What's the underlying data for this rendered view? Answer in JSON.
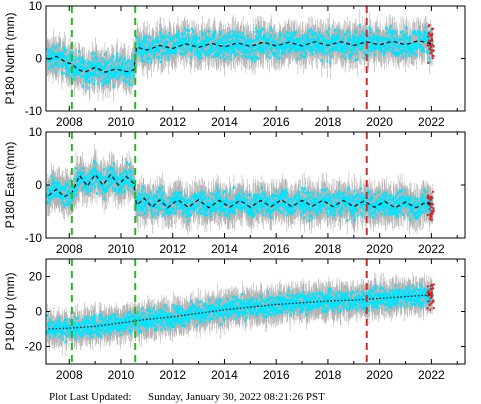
{
  "footer": {
    "label": "Plot Last Updated:",
    "timestamp": "Sunday, January 30, 2022 08:21:26 PST"
  },
  "colors": {
    "error_bars": "#b4b4b4",
    "points": "#00e5ff",
    "recent_points": "#e0201e",
    "model_line": "#000000",
    "equipment_change": "#2bb52b",
    "earthquake": "#d62728"
  },
  "chart_data": [
    {
      "type": "scatter",
      "ylabel": "P180 North (mm)",
      "xlim": [
        2007.1,
        2023.3
      ],
      "ylim": [
        -10,
        10
      ],
      "yticks": [
        -10,
        0,
        10
      ],
      "xticks": [
        2008,
        2010,
        2012,
        2014,
        2016,
        2018,
        2020,
        2022
      ],
      "vlines": [
        {
          "x": 2008.1,
          "color": "green"
        },
        {
          "x": 2010.55,
          "color": "green"
        },
        {
          "x": 2019.5,
          "color": "red"
        }
      ],
      "model": [
        [
          2007.2,
          -0.2
        ],
        [
          2007.5,
          0.4
        ],
        [
          2007.9,
          -0.8
        ],
        [
          2008.1,
          -1.0
        ],
        [
          2008.3,
          -2.0
        ],
        [
          2008.6,
          -2.6
        ],
        [
          2009.0,
          -1.7
        ],
        [
          2009.4,
          -2.6
        ],
        [
          2009.8,
          -2.0
        ],
        [
          2010.2,
          -2.5
        ],
        [
          2010.5,
          -2.2
        ],
        [
          2010.6,
          2.2
        ],
        [
          2011.0,
          1.6
        ],
        [
          2011.5,
          2.5
        ],
        [
          2012.0,
          1.9
        ],
        [
          2012.5,
          2.8
        ],
        [
          2013.0,
          2.1
        ],
        [
          2013.5,
          2.9
        ],
        [
          2014.0,
          2.2
        ],
        [
          2014.5,
          3.0
        ],
        [
          2015.0,
          2.3
        ],
        [
          2015.5,
          3.1
        ],
        [
          2016.0,
          2.4
        ],
        [
          2016.5,
          3.1
        ],
        [
          2017.0,
          2.4
        ],
        [
          2017.5,
          3.2
        ],
        [
          2018.0,
          2.5
        ],
        [
          2018.5,
          3.2
        ],
        [
          2019.0,
          2.5
        ],
        [
          2019.5,
          3.2
        ],
        [
          2020.0,
          2.6
        ],
        [
          2020.5,
          3.3
        ],
        [
          2021.0,
          2.6
        ],
        [
          2021.5,
          3.4
        ],
        [
          2022.0,
          2.8
        ]
      ],
      "scatter": 2.2,
      "error": 2.6
    },
    {
      "type": "scatter",
      "ylabel": "P180 East (mm)",
      "xlim": [
        2007.1,
        2023.3
      ],
      "ylim": [
        -10,
        10
      ],
      "yticks": [
        -10,
        0,
        10
      ],
      "xticks": [
        2008,
        2010,
        2012,
        2014,
        2016,
        2018,
        2020,
        2022
      ],
      "vlines": [
        {
          "x": 2008.1,
          "color": "green"
        },
        {
          "x": 2010.55,
          "color": "green"
        },
        {
          "x": 2019.5,
          "color": "red"
        }
      ],
      "model": [
        [
          2007.2,
          -2.0
        ],
        [
          2007.5,
          -0.8
        ],
        [
          2007.8,
          -2.2
        ],
        [
          2008.1,
          -1.5
        ],
        [
          2008.4,
          1.8
        ],
        [
          2008.7,
          -0.2
        ],
        [
          2009.0,
          2.0
        ],
        [
          2009.3,
          0.0
        ],
        [
          2009.6,
          2.0
        ],
        [
          2009.9,
          0.0
        ],
        [
          2010.2,
          1.6
        ],
        [
          2010.5,
          0.3
        ],
        [
          2010.6,
          -3.8
        ],
        [
          2010.9,
          -2.5
        ],
        [
          2011.2,
          -4.2
        ],
        [
          2011.5,
          -2.8
        ],
        [
          2011.8,
          -4.3
        ],
        [
          2012.2,
          -2.8
        ],
        [
          2012.6,
          -4.2
        ],
        [
          2013.0,
          -2.8
        ],
        [
          2013.4,
          -4.3
        ],
        [
          2013.8,
          -2.9
        ],
        [
          2014.2,
          -4.2
        ],
        [
          2014.6,
          -2.9
        ],
        [
          2015.0,
          -4.2
        ],
        [
          2015.4,
          -2.9
        ],
        [
          2015.8,
          -4.1
        ],
        [
          2016.2,
          -2.8
        ],
        [
          2016.6,
          -4.1
        ],
        [
          2017.0,
          -2.9
        ],
        [
          2017.4,
          -4.0
        ],
        [
          2017.8,
          -2.9
        ],
        [
          2018.2,
          -4.1
        ],
        [
          2018.6,
          -2.9
        ],
        [
          2019.0,
          -4.1
        ],
        [
          2019.4,
          -3.0
        ],
        [
          2019.8,
          -4.2
        ],
        [
          2020.2,
          -3.1
        ],
        [
          2020.6,
          -4.3
        ],
        [
          2021.0,
          -3.2
        ],
        [
          2021.4,
          -4.3
        ],
        [
          2021.8,
          -3.2
        ],
        [
          2022.0,
          -3.8
        ]
      ],
      "scatter": 2.0,
      "error": 2.6
    },
    {
      "type": "scatter",
      "ylabel": "P180 Up (mm)",
      "xlim": [
        2007.1,
        2023.3
      ],
      "ylim": [
        -30,
        30
      ],
      "yticks": [
        -20,
        0,
        20
      ],
      "xticks": [
        2008,
        2010,
        2012,
        2014,
        2016,
        2018,
        2020,
        2022
      ],
      "vlines": [
        {
          "x": 2008.1,
          "color": "green"
        },
        {
          "x": 2010.55,
          "color": "green"
        },
        {
          "x": 2019.5,
          "color": "red"
        }
      ],
      "model": [
        [
          2007.2,
          -10.0
        ],
        [
          2008.0,
          -9.5
        ],
        [
          2009.0,
          -8.5
        ],
        [
          2010.0,
          -6.5
        ],
        [
          2011.0,
          -4.5
        ],
        [
          2012.0,
          -3.0
        ],
        [
          2013.0,
          -1.0
        ],
        [
          2014.0,
          1.0
        ],
        [
          2015.0,
          2.5
        ],
        [
          2016.0,
          4.0
        ],
        [
          2017.0,
          5.0
        ],
        [
          2018.0,
          6.0
        ],
        [
          2019.0,
          6.5
        ],
        [
          2020.0,
          7.5
        ],
        [
          2021.0,
          8.5
        ],
        [
          2022.0,
          9.5
        ]
      ],
      "scatter": 5.0,
      "error": 7.0
    }
  ]
}
